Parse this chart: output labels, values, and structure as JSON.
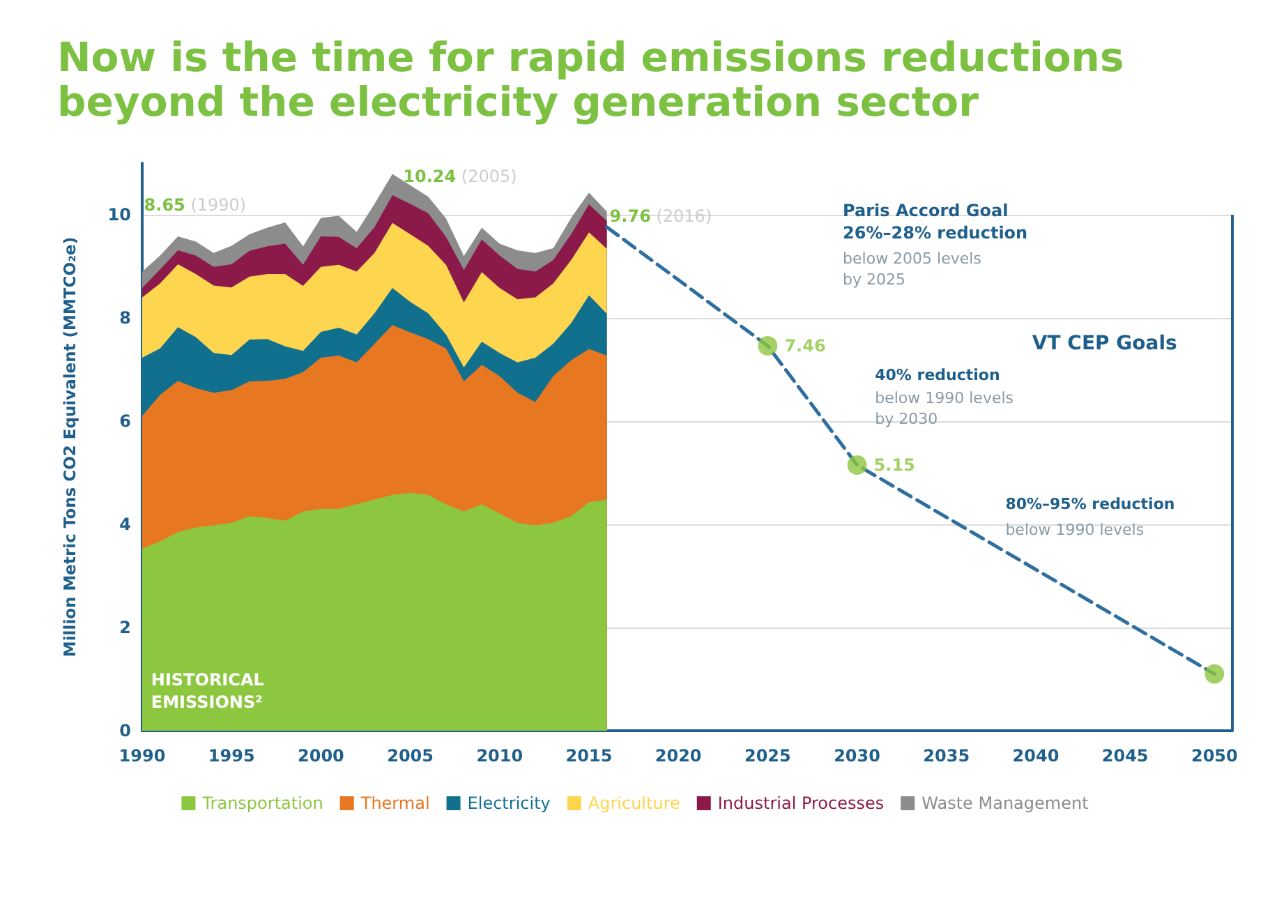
{
  "chart_data": {
    "type": "area",
    "stacked": true,
    "title": "Now is the time for rapid emissions reductions\nbeyond the electricity generation sector",
    "ylabel": "Million Metric Tons CO2 Equivalent (MMTCO₂e)",
    "x": [
      1990,
      1991,
      1992,
      1993,
      1994,
      1995,
      1996,
      1997,
      1998,
      1999,
      2000,
      2001,
      2002,
      2003,
      2004,
      2005,
      2006,
      2007,
      2008,
      2009,
      2010,
      2011,
      2012,
      2013,
      2014,
      2015,
      2016
    ],
    "series": [
      {
        "name": "Transportation",
        "color": "#8dc63f",
        "values": [
          3.53,
          3.67,
          3.85,
          3.94,
          3.98,
          4.03,
          4.16,
          4.12,
          4.07,
          4.25,
          4.3,
          4.3,
          4.39,
          4.48,
          4.57,
          4.61,
          4.57,
          4.39,
          4.25,
          4.39,
          4.21,
          4.03,
          3.98,
          4.03,
          4.16,
          4.43,
          4.48
        ]
      },
      {
        "name": "Thermal",
        "color": "#e87722",
        "values": [
          2.57,
          2.84,
          2.93,
          2.7,
          2.57,
          2.57,
          2.61,
          2.66,
          2.75,
          2.7,
          2.93,
          2.97,
          2.75,
          3.02,
          3.29,
          3.11,
          3.02,
          3.02,
          2.52,
          2.7,
          2.66,
          2.52,
          2.39,
          2.84,
          3.02,
          2.97,
          2.79
        ]
      },
      {
        "name": "Electricity",
        "color": "#12708f",
        "values": [
          1.13,
          0.9,
          1.04,
          0.99,
          0.77,
          0.68,
          0.81,
          0.81,
          0.63,
          0.41,
          0.5,
          0.54,
          0.54,
          0.59,
          0.72,
          0.59,
          0.5,
          0.27,
          0.27,
          0.45,
          0.45,
          0.59,
          0.86,
          0.63,
          0.72,
          1.04,
          0.81
        ]
      },
      {
        "name": "Agriculture",
        "color": "#fdd54f",
        "values": [
          1.17,
          1.26,
          1.22,
          1.22,
          1.31,
          1.31,
          1.22,
          1.26,
          1.4,
          1.26,
          1.26,
          1.22,
          1.22,
          1.17,
          1.26,
          1.31,
          1.31,
          1.35,
          1.26,
          1.35,
          1.26,
          1.22,
          1.17,
          1.17,
          1.22,
          1.22,
          1.26
        ]
      },
      {
        "name": "Industrial Processes",
        "color": "#8b1a4a",
        "values": [
          0.18,
          0.27,
          0.27,
          0.36,
          0.36,
          0.45,
          0.5,
          0.54,
          0.59,
          0.41,
          0.59,
          0.54,
          0.45,
          0.5,
          0.54,
          0.59,
          0.63,
          0.54,
          0.63,
          0.63,
          0.63,
          0.59,
          0.5,
          0.45,
          0.5,
          0.54,
          0.54
        ]
      },
      {
        "name": "Waste Management",
        "color": "#8c8c8c",
        "values": [
          0.32,
          0.27,
          0.27,
          0.27,
          0.27,
          0.36,
          0.32,
          0.36,
          0.41,
          0.36,
          0.36,
          0.41,
          0.32,
          0.45,
          0.41,
          0.36,
          0.32,
          0.36,
          0.27,
          0.23,
          0.23,
          0.36,
          0.36,
          0.23,
          0.32,
          0.23,
          0.18
        ]
      },
      {
        "type": "line",
        "color": "#2f6f9f",
        "line_style": "dashed",
        "marker": "none",
        "x": [
          2016,
          2025,
          2030,
          2050
        ],
        "values": [
          9.76,
          7.46,
          5.15,
          1.1
        ]
      },
      {
        "type": "scatter",
        "color": "#8dc63f",
        "marker": "circle",
        "x": [
          2025,
          2030,
          2050
        ],
        "values": [
          7.46,
          5.15,
          1.1
        ],
        "value_labels": [
          "7.46",
          "5.15",
          null
        ]
      }
    ],
    "xlim": [
      1990,
      2051
    ],
    "xticks": [
      1990,
      1995,
      2000,
      2005,
      2010,
      2015,
      2020,
      2025,
      2030,
      2035,
      2040,
      2045,
      2050
    ],
    "ylim": [
      0,
      11
    ],
    "yticks": [
      0,
      2,
      4,
      6,
      8,
      10
    ],
    "grid": "y",
    "legend": "bottom",
    "marker": "none",
    "annotations": [
      "8.65 (1990)",
      "10.24 (2005)",
      {
        "text": "9.76 (2016)",
        "x": 2016,
        "y": 9.76
      },
      "Paris Accord Goal\n26%–28% reduction",
      "below 2005 levels\nby 2025",
      "VT CEP Goals",
      "40% reduction",
      "below 1990 levels\nby 2030",
      "80%–95% reduction",
      "below 1990 levels",
      "HISTORICAL\nEMISSIONS²"
    ]
  }
}
